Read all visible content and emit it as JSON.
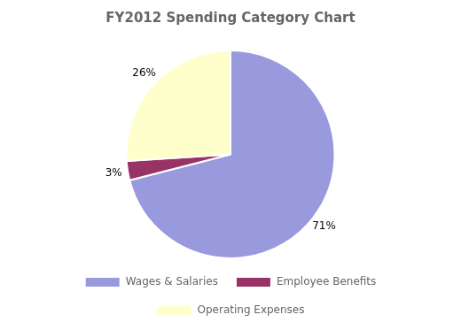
{
  "chart_data": {
    "type": "pie",
    "title": "FY2012 Spending Category Chart",
    "categories": [
      "Wages & Salaries",
      "Employee Benefits",
      "Operating Expenses"
    ],
    "values": [
      71,
      3,
      26
    ],
    "value_labels": [
      "71%",
      "3%",
      "26%"
    ],
    "colors": [
      "#9999dd",
      "#993366",
      "#ffffcc"
    ],
    "data_labels": true,
    "legend": "bottom"
  }
}
